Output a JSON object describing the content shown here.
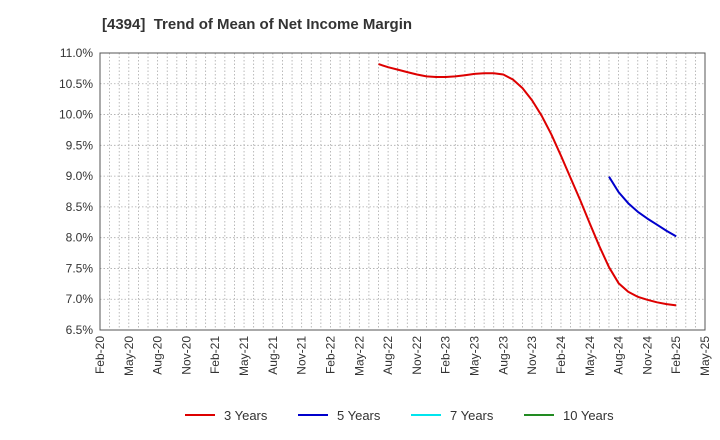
{
  "chart_data": {
    "type": "line",
    "title": "[4394]  Trend of Mean of Net Income Margin",
    "xlabel": "",
    "ylabel": "",
    "ylim": [
      6.5,
      11.0
    ],
    "y_ticks": [
      "11.0%",
      "10.5%",
      "10.0%",
      "9.5%",
      "9.0%",
      "8.5%",
      "8.0%",
      "7.5%",
      "7.0%",
      "6.5%"
    ],
    "y_tick_values": [
      11.0,
      10.5,
      10.0,
      9.5,
      9.0,
      8.5,
      8.0,
      7.5,
      7.0,
      6.5
    ],
    "x_ticks": [
      "Feb-20",
      "May-20",
      "Aug-20",
      "Nov-20",
      "Feb-21",
      "May-21",
      "Aug-21",
      "Nov-21",
      "Feb-22",
      "May-22",
      "Aug-22",
      "Nov-22",
      "Feb-23",
      "May-23",
      "Aug-23",
      "Nov-23",
      "Feb-24",
      "May-24",
      "Aug-24",
      "Nov-24",
      "Feb-25",
      "May-25"
    ],
    "grid": true,
    "legend_position": "bottom",
    "series": [
      {
        "name": "3 Years",
        "color": "#dd0000",
        "x": [
          "Jul-22",
          "Aug-22",
          "Sep-22",
          "Oct-22",
          "Nov-22",
          "Dec-22",
          "Jan-23",
          "Feb-23",
          "Mar-23",
          "Apr-23",
          "May-23",
          "Jun-23",
          "Jul-23",
          "Aug-23",
          "Sep-23",
          "Oct-23",
          "Nov-23",
          "Dec-23",
          "Jan-24",
          "Feb-24",
          "Mar-24",
          "Apr-24",
          "May-24",
          "Jun-24",
          "Jul-24",
          "Aug-24",
          "Sep-24",
          "Oct-24",
          "Nov-24",
          "Dec-24",
          "Jan-25",
          "Feb-25"
        ],
        "values": [
          10.82,
          10.77,
          10.73,
          10.69,
          10.65,
          10.62,
          10.61,
          10.61,
          10.62,
          10.64,
          10.66,
          10.67,
          10.67,
          10.65,
          10.57,
          10.43,
          10.23,
          9.98,
          9.68,
          9.33,
          8.97,
          8.61,
          8.23,
          7.86,
          7.52,
          7.26,
          7.12,
          7.04,
          6.99,
          6.95,
          6.92,
          6.9
        ]
      },
      {
        "name": "5 Years",
        "color": "#0000cc",
        "x": [
          "Jul-24",
          "Aug-24",
          "Sep-24",
          "Oct-24",
          "Nov-24",
          "Dec-24",
          "Jan-25",
          "Feb-25"
        ],
        "values": [
          8.99,
          8.74,
          8.56,
          8.42,
          8.31,
          8.21,
          8.11,
          8.02
        ]
      },
      {
        "name": "7 Years",
        "color": "#00e5ee",
        "x": [],
        "values": []
      },
      {
        "name": "10 Years",
        "color": "#228b22",
        "x": [],
        "values": []
      }
    ]
  }
}
